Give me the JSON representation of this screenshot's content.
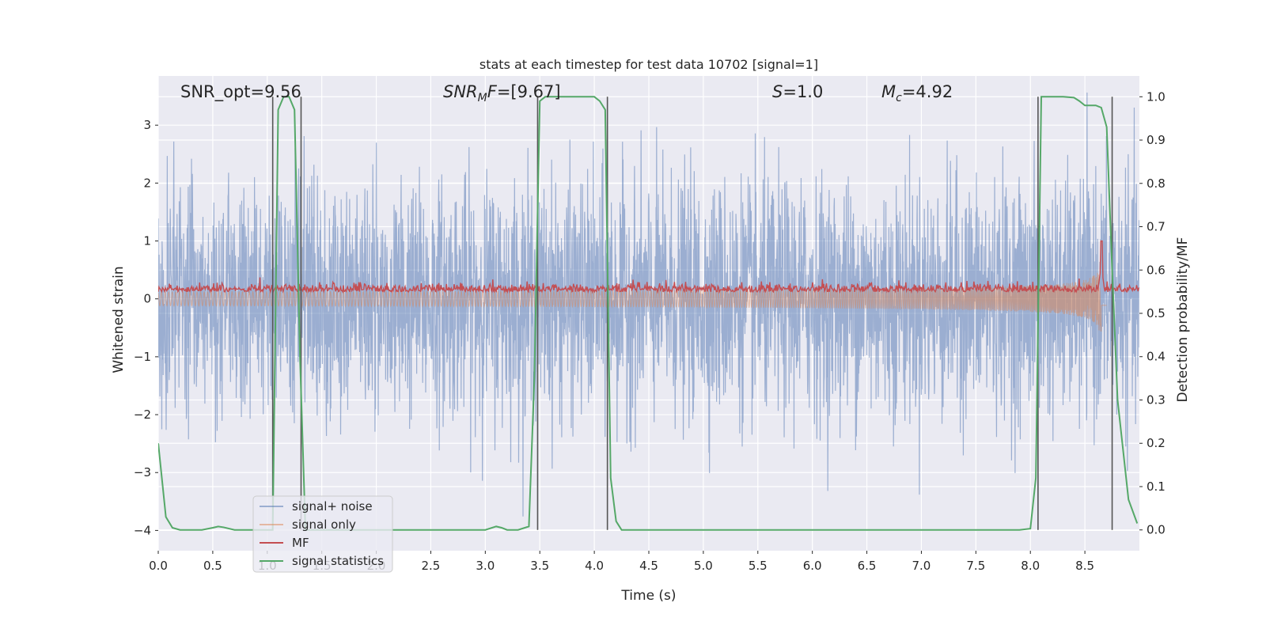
{
  "chart_data": {
    "type": "line",
    "title": "stats at each timestep for test data 10702 [signal=1]",
    "xlabel": "Time (s)",
    "ylabel": "Whitened strain",
    "y2label": "Detection probability/MF",
    "xlim": [
      0.0,
      9.0
    ],
    "ylim": [
      -4.35,
      3.85
    ],
    "y2lim": [
      -0.048,
      1.048
    ],
    "x_ticks": [
      "0.0",
      "0.5",
      "1.0",
      "1.5",
      "2.0",
      "2.5",
      "3.0",
      "3.5",
      "4.0",
      "4.5",
      "5.0",
      "5.5",
      "6.0",
      "6.5",
      "7.0",
      "7.5",
      "8.0",
      "8.5"
    ],
    "y_ticks": [
      "−4",
      "−3",
      "−2",
      "−1",
      "0",
      "1",
      "2",
      "3"
    ],
    "y2_ticks": [
      "0.0",
      "0.1",
      "0.2",
      "0.3",
      "0.4",
      "0.5",
      "0.6",
      "0.7",
      "0.8",
      "0.9",
      "1.0"
    ],
    "grid": true,
    "legend_position": "lower-left",
    "annotations": {
      "snr_opt": "SNR_opt=9.56",
      "snr_mf_prefix": "SNR",
      "snr_mf_sub": "M",
      "snr_mf_suffix": "F=[9.67]",
      "s_prefix": "S",
      "s_suffix": "=1.0",
      "mc_prefix": "M",
      "mc_sub": "c",
      "mc_suffix": "=4.92"
    },
    "series": [
      {
        "name": "signal+ noise",
        "color": "#4c72b0",
        "kind": "noise",
        "amplitude_std": 1.0
      },
      {
        "name": "signal only",
        "color": "#dd8452",
        "kind": "chirp",
        "merger_time": 8.65,
        "peak_amplitude": 1.0
      },
      {
        "name": "MF",
        "color": "#c44e52",
        "kind": "mf",
        "baseline": 0.12,
        "peak_time": 8.65,
        "peak_value": 1.0
      },
      {
        "name": "signal statistics",
        "color": "#55a868",
        "x": [
          0.0,
          0.07,
          0.13,
          0.2,
          0.3,
          0.4,
          0.5,
          0.55,
          0.6,
          0.7,
          0.8,
          0.9,
          1.0,
          1.05,
          1.1,
          1.15,
          1.2,
          1.25,
          1.3,
          1.35,
          1.4,
          1.5,
          2.0,
          2.5,
          3.0,
          3.1,
          3.15,
          3.2,
          3.3,
          3.4,
          3.45,
          3.5,
          3.55,
          3.6,
          3.7,
          3.8,
          3.9,
          4.0,
          4.05,
          4.1,
          4.15,
          4.2,
          4.25,
          4.3,
          4.5,
          5.0,
          5.5,
          6.0,
          6.5,
          7.0,
          7.5,
          7.9,
          8.0,
          8.05,
          8.1,
          8.15,
          8.2,
          8.3,
          8.4,
          8.45,
          8.5,
          8.55,
          8.6,
          8.65,
          8.7,
          8.75,
          8.8,
          8.9,
          8.98
        ],
        "y": [
          0.2,
          0.03,
          0.005,
          0.0,
          0.0,
          0.0,
          0.005,
          0.008,
          0.006,
          0.0,
          0.0,
          0.0,
          0.0,
          0.0,
          0.97,
          1.0,
          1.0,
          0.97,
          0.4,
          0.0,
          0.0,
          0.0,
          0.0,
          0.0,
          0.0,
          0.008,
          0.005,
          0.0,
          0.0,
          0.008,
          0.35,
          0.99,
          1.0,
          1.0,
          1.0,
          1.0,
          1.0,
          1.0,
          0.99,
          0.97,
          0.12,
          0.02,
          0.0,
          0.0,
          0.0,
          0.0,
          0.0,
          0.0,
          0.0,
          0.0,
          0.0,
          0.0,
          0.003,
          0.12,
          1.0,
          1.0,
          1.0,
          1.0,
          0.998,
          0.99,
          0.98,
          0.98,
          0.98,
          0.975,
          0.93,
          0.6,
          0.3,
          0.07,
          0.015
        ]
      }
    ],
    "vlines_x": [
      1.05,
      1.31,
      3.48,
      4.12,
      8.07,
      8.75
    ]
  }
}
